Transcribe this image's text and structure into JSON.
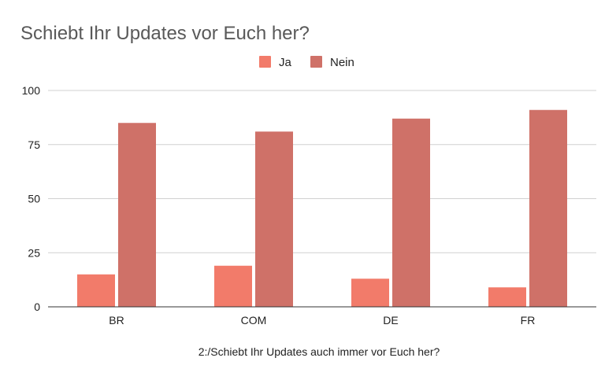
{
  "chart_data": {
    "type": "bar",
    "title": "Schiebt Ihr Updates vor Euch her?",
    "xlabel": "2:/Schiebt Ihr Updates auch immer vor Euch her?",
    "ylabel": "",
    "categories": [
      "BR",
      "COM",
      "DE",
      "FR"
    ],
    "series": [
      {
        "name": "Ja",
        "color": "#f27b6a",
        "values": [
          15,
          19,
          13,
          9
        ]
      },
      {
        "name": "Nein",
        "color": "#cf7168",
        "values": [
          85,
          81,
          87,
          91
        ]
      }
    ],
    "ylim": [
      0,
      100
    ],
    "yticks": [
      "0",
      "25",
      "50",
      "75",
      "100"
    ],
    "grid": true,
    "legend": "top-center"
  }
}
